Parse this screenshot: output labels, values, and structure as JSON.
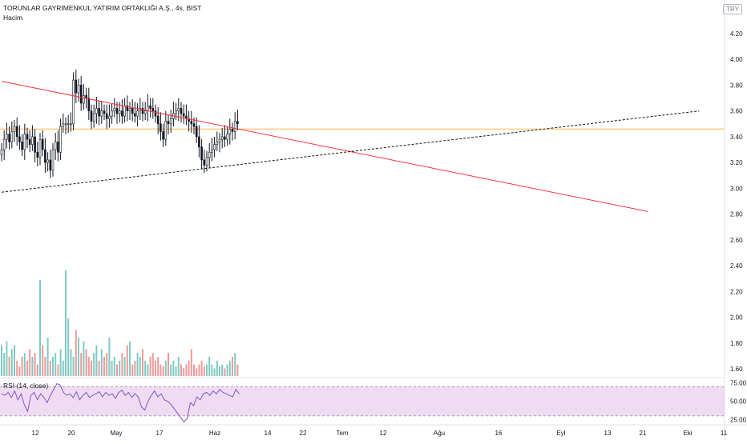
{
  "header": {
    "title": "TORUNLAR GAYRİMENKUL YATIRIM ORTAKLIĞI A.Ş., 4s, BIST",
    "volume_label": "Hacim",
    "currency": "TRY"
  },
  "rsi": {
    "label": "RSI (14, close)",
    "ticks": [
      "75.00",
      "50.00",
      "25.00"
    ],
    "band": [
      30,
      70
    ],
    "band_color": "#e1bee7",
    "line_color": "#7e57c2",
    "values": [
      60,
      58,
      62,
      55,
      64,
      52,
      60,
      45,
      36,
      58,
      62,
      52,
      60,
      55,
      48,
      58,
      66,
      74,
      72,
      62,
      58,
      60,
      55,
      63,
      52,
      58,
      62,
      55,
      58,
      60,
      63,
      56,
      62,
      58,
      60,
      54,
      62,
      65,
      58,
      62,
      55,
      60,
      56,
      42,
      38,
      50,
      58,
      64,
      56,
      60,
      52,
      50,
      46,
      40,
      34,
      28,
      22,
      26,
      48,
      44,
      56,
      52,
      60,
      62,
      58,
      64,
      60,
      66,
      62,
      60,
      58,
      56,
      66,
      60
    ]
  },
  "chart_data": {
    "type": "candlestick",
    "title": "TORUNLAR GAYRİMENKUL YATIRIM ORTAKLIĞI A.Ş., 4s, BIST",
    "x_ticks": [
      "12",
      "20",
      "May",
      "17",
      "Haz",
      "14",
      "22",
      "Tem",
      "12",
      "Ağu",
      "16",
      "Eyl",
      "13",
      "21",
      "Eki",
      "11"
    ],
    "y_ticks": [
      "4.20",
      "4.00",
      "3.80",
      "3.60",
      "3.40",
      "3.20",
      "3.00",
      "2.80",
      "2.60",
      "2.40",
      "2.20",
      "2.00",
      "1.80",
      "1.60"
    ],
    "ylim": [
      1.6,
      4.2
    ],
    "up_color": "#131722",
    "down_color": "#131722",
    "volume_up_color": "#80cbc4",
    "volume_down_color": "#ef9a9a",
    "horizontal_line": {
      "price": 3.46,
      "color": "#ffb74d"
    },
    "red_trendline": {
      "from": [
        0,
        3.83
      ],
      "to": [
        252,
        2.82
      ],
      "color": "#f23645"
    },
    "dashed_trendline": {
      "from": [
        0,
        2.97
      ],
      "to": [
        272,
        3.6
      ],
      "color": "#131722"
    },
    "close": [
      3.3,
      3.38,
      3.42,
      3.36,
      3.44,
      3.48,
      3.4,
      3.36,
      3.3,
      3.42,
      3.38,
      3.34,
      3.4,
      3.28,
      3.24,
      3.38,
      3.3,
      3.2,
      3.22,
      3.14,
      3.3,
      3.36,
      3.28,
      3.48,
      3.5,
      3.5,
      3.5,
      3.5,
      3.84,
      3.74,
      3.8,
      3.66,
      3.72,
      3.7,
      3.6,
      3.52,
      3.58,
      3.62,
      3.56,
      3.6,
      3.58,
      3.54,
      3.56,
      3.6,
      3.62,
      3.58,
      3.6,
      3.56,
      3.64,
      3.6,
      3.62,
      3.58,
      3.56,
      3.6,
      3.62,
      3.58,
      3.6,
      3.64,
      3.62,
      3.6,
      3.56,
      3.5,
      3.44,
      3.38,
      3.52,
      3.5,
      3.54,
      3.58,
      3.6,
      3.62,
      3.58,
      3.56,
      3.54,
      3.52,
      3.5,
      3.48,
      3.4,
      3.32,
      3.22,
      3.18,
      3.24,
      3.28,
      3.3,
      3.34,
      3.36,
      3.38,
      3.4,
      3.38,
      3.42,
      3.46,
      3.44,
      3.52,
      3.5
    ],
    "volume": [
      0.16,
      0.12,
      0.18,
      0.1,
      0.14,
      0.16,
      0.08,
      0.05,
      0.1,
      0.12,
      0.08,
      0.14,
      0.1,
      0.12,
      0.06,
      0.5,
      0.16,
      0.1,
      0.2,
      0.08,
      0.1,
      0.12,
      0.06,
      0.14,
      0.08,
      0.55,
      0.3,
      0.14,
      0.1,
      0.24,
      0.2,
      0.12,
      0.18,
      0.14,
      0.1,
      0.08,
      0.12,
      0.16,
      0.08,
      0.14,
      0.1,
      0.12,
      0.2,
      0.08,
      0.1,
      0.06,
      0.08,
      0.12,
      0.1,
      0.16,
      0.18,
      0.06,
      0.08,
      0.12,
      0.1,
      0.14,
      0.08,
      0.06,
      0.1,
      0.12,
      0.08,
      0.1,
      0.06,
      0.05,
      0.08,
      0.12,
      0.06,
      0.08,
      0.05,
      0.1,
      0.06,
      0.04,
      0.06,
      0.08,
      0.14,
      0.06,
      0.04,
      0.06,
      0.08,
      0.05,
      0.06,
      0.1,
      0.06,
      0.04,
      0.08,
      0.05,
      0.06,
      0.04,
      0.06,
      0.08,
      0.1,
      0.12,
      0.06
    ]
  }
}
